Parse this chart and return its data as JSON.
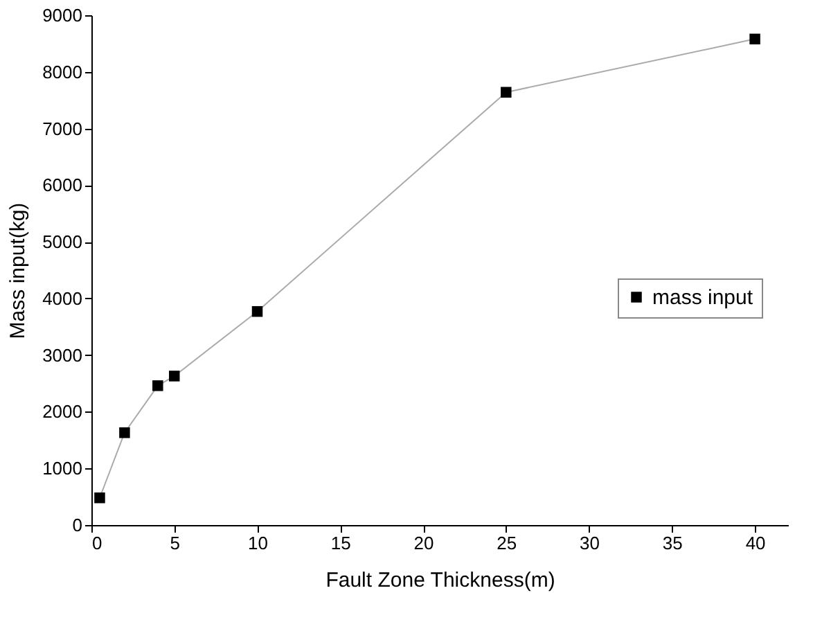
{
  "chart_data": {
    "type": "line",
    "xlabel": "Fault Zone Thickness(m)",
    "ylabel": "Mass input(kg)",
    "x": [
      0.5,
      2,
      4,
      5,
      10,
      25,
      40
    ],
    "series": [
      {
        "name": "mass input",
        "color": "#000000",
        "values": [
          480,
          1630,
          2460,
          2630,
          3770,
          7640,
          8580
        ]
      }
    ],
    "xlim": [
      0,
      42
    ],
    "xticks": [
      0,
      5,
      10,
      15,
      20,
      25,
      30,
      35,
      40
    ],
    "ylim": [
      0,
      9000
    ],
    "yticks": [
      0,
      1000,
      2000,
      3000,
      4000,
      5000,
      6000,
      7000,
      8000,
      9000
    ],
    "grid": false,
    "legend": "right",
    "marker": "square",
    "line_style": "solid"
  }
}
